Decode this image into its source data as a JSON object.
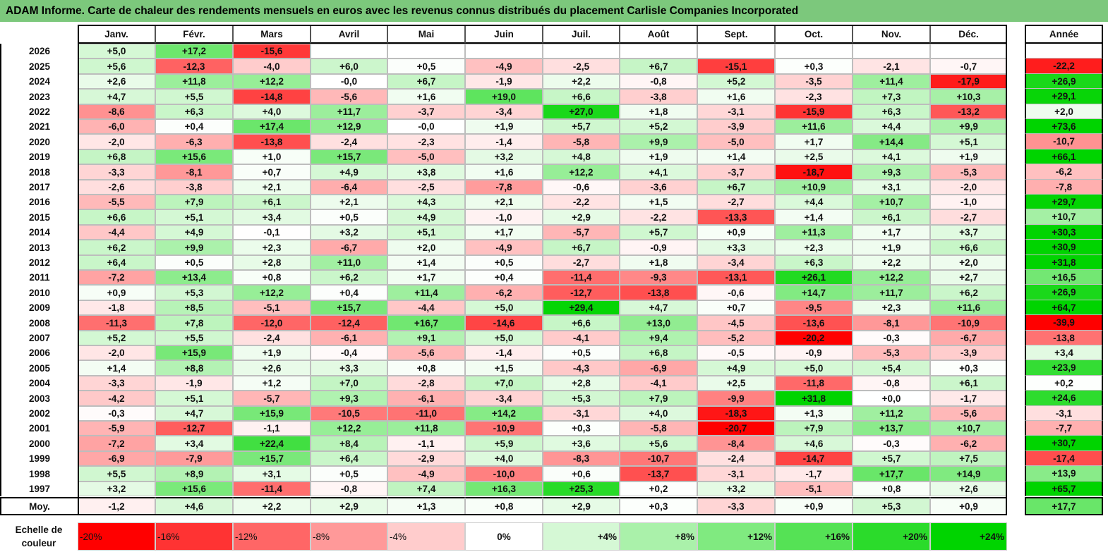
{
  "title": "ADAM Informe. Carte de chaleur des rendements mensuels en euros avec les revenus connus distribués du placement Carlisle Companies Incorporated",
  "months": [
    "Janv.",
    "Févr.",
    "Mars",
    "Avril",
    "Mai",
    "Juin",
    "Juil.",
    "Août",
    "Sept.",
    "Oct.",
    "Nov.",
    "Déc."
  ],
  "annual_header": "Année",
  "average_label": "Moy.",
  "scale_label": [
    "Echelle de",
    "couleur"
  ],
  "colors": {
    "negative": "#ff0000",
    "neutral": "#ffffff",
    "positive": "#00d400",
    "title_bg": "#7cc87c"
  },
  "chart_data": {
    "type": "heatmap",
    "title": "ADAM Informe. Carte de chaleur des rendements mensuels en euros avec les revenus connus distribués du placement Carlisle Companies Incorporated",
    "unit": "%",
    "rows": [
      {
        "year": "2026",
        "months": [
          "+5,0",
          "+17,2",
          "-15,6",
          "",
          "",
          "",
          "",
          "",
          "",
          "",
          "",
          ""
        ],
        "annual": ""
      },
      {
        "year": "2025",
        "months": [
          "+5,6",
          "-12,3",
          "-4,0",
          "+6,0",
          "+0,5",
          "-4,9",
          "-2,5",
          "+6,7",
          "-15,1",
          "+0,3",
          "-2,1",
          "-0,7"
        ],
        "annual": "-22,2"
      },
      {
        "year": "2024",
        "months": [
          "+2,6",
          "+11,8",
          "+12,2",
          "-0,0",
          "+6,7",
          "-1,9",
          "+2,2",
          "-0,8",
          "+5,2",
          "-3,5",
          "+11,4",
          "-17,9"
        ],
        "annual": "+26,9"
      },
      {
        "year": "2023",
        "months": [
          "+4,7",
          "+5,5",
          "-14,8",
          "-5,6",
          "+1,6",
          "+19,0",
          "+6,6",
          "-3,8",
          "+1,6",
          "-2,3",
          "+7,3",
          "+10,3"
        ],
        "annual": "+29,1"
      },
      {
        "year": "2022",
        "months": [
          "-8,6",
          "+6,3",
          "+4,0",
          "+11,7",
          "-3,7",
          "-3,4",
          "+27,0",
          "+1,8",
          "-3,1",
          "-15,9",
          "+6,3",
          "-13,2"
        ],
        "annual": "+2,0"
      },
      {
        "year": "2021",
        "months": [
          "-6,0",
          "+0,4",
          "+17,4",
          "+12,9",
          "-0,0",
          "+1,9",
          "+5,7",
          "+5,2",
          "-3,9",
          "+11,6",
          "+4,4",
          "+9,9"
        ],
        "annual": "+73,6"
      },
      {
        "year": "2020",
        "months": [
          "-2,0",
          "-6,3",
          "-13,8",
          "-2,4",
          "-2,3",
          "-1,4",
          "-5,8",
          "+9,9",
          "-5,0",
          "+1,7",
          "+14,4",
          "+5,1"
        ],
        "annual": "-10,7"
      },
      {
        "year": "2019",
        "months": [
          "+6,8",
          "+15,6",
          "+1,0",
          "+15,7",
          "-5,0",
          "+3,2",
          "+4,8",
          "+1,9",
          "+1,4",
          "+2,5",
          "+4,1",
          "+1,9"
        ],
        "annual": "+66,1"
      },
      {
        "year": "2018",
        "months": [
          "-3,3",
          "-8,1",
          "+0,7",
          "+4,9",
          "+3,8",
          "+1,6",
          "+12,2",
          "+4,1",
          "-3,7",
          "-18,7",
          "+9,3",
          "-5,3"
        ],
        "annual": "-6,2"
      },
      {
        "year": "2017",
        "months": [
          "-2,6",
          "-3,8",
          "+2,1",
          "-6,4",
          "-2,5",
          "-7,8",
          "-0,6",
          "-3,6",
          "+6,7",
          "+10,9",
          "+3,1",
          "-2,0"
        ],
        "annual": "-7,8"
      },
      {
        "year": "2016",
        "months": [
          "-5,5",
          "+7,9",
          "+6,1",
          "+2,1",
          "+4,3",
          "+2,1",
          "-2,2",
          "+1,5",
          "-2,7",
          "+4,4",
          "+10,7",
          "-1,0"
        ],
        "annual": "+29,7"
      },
      {
        "year": "2015",
        "months": [
          "+6,6",
          "+5,1",
          "+3,4",
          "+0,5",
          "+4,9",
          "-1,0",
          "+2,9",
          "-2,2",
          "-13,3",
          "+1,4",
          "+6,1",
          "-2,7"
        ],
        "annual": "+10,7"
      },
      {
        "year": "2014",
        "months": [
          "-4,4",
          "+4,9",
          "-0,1",
          "+3,2",
          "+5,1",
          "+1,7",
          "-5,7",
          "+5,7",
          "+0,9",
          "+11,3",
          "+1,7",
          "+3,7"
        ],
        "annual": "+30,3"
      },
      {
        "year": "2013",
        "months": [
          "+6,2",
          "+9,9",
          "+2,3",
          "-6,7",
          "+2,0",
          "-4,9",
          "+6,7",
          "-0,9",
          "+3,3",
          "+2,3",
          "+1,9",
          "+6,6"
        ],
        "annual": "+30,9"
      },
      {
        "year": "2012",
        "months": [
          "+6,4",
          "+0,5",
          "+2,8",
          "+11,0",
          "+1,4",
          "+0,5",
          "-2,7",
          "+1,8",
          "-3,4",
          "+6,3",
          "+2,2",
          "+2,0"
        ],
        "annual": "+31,8"
      },
      {
        "year": "2011",
        "months": [
          "-7,2",
          "+13,4",
          "+0,8",
          "+6,2",
          "+1,7",
          "+0,4",
          "-11,4",
          "-9,3",
          "-13,1",
          "+26,1",
          "+12,2",
          "+2,7"
        ],
        "annual": "+16,5"
      },
      {
        "year": "2010",
        "months": [
          "+0,9",
          "+5,3",
          "+12,2",
          "+0,4",
          "+11,4",
          "-6,2",
          "-12,7",
          "-13,8",
          "-0,6",
          "+14,7",
          "+11,7",
          "+6,2"
        ],
        "annual": "+26,9"
      },
      {
        "year": "2009",
        "months": [
          "-1,8",
          "+8,5",
          "-5,1",
          "+15,7",
          "-4,4",
          "+5,0",
          "+29,4",
          "+4,7",
          "+0,7",
          "-9,5",
          "+2,3",
          "+11,6"
        ],
        "annual": "+64,7"
      },
      {
        "year": "2008",
        "months": [
          "-11,3",
          "+7,8",
          "-12,0",
          "-12,4",
          "+16,7",
          "-14,6",
          "+6,6",
          "+13,0",
          "-4,5",
          "-13,6",
          "-8,1",
          "-10,9"
        ],
        "annual": "-39,9"
      },
      {
        "year": "2007",
        "months": [
          "+5,2",
          "+5,5",
          "-2,4",
          "-6,1",
          "+9,1",
          "+5,0",
          "-4,1",
          "+9,4",
          "-5,2",
          "-20,2",
          "-0,3",
          "-6,7"
        ],
        "annual": "-13,8"
      },
      {
        "year": "2006",
        "months": [
          "-2,0",
          "+15,9",
          "+1,9",
          "-0,4",
          "-5,6",
          "-1,4",
          "+0,5",
          "+6,8",
          "-0,5",
          "-0,9",
          "-5,3",
          "-3,9"
        ],
        "annual": "+3,4"
      },
      {
        "year": "2005",
        "months": [
          "+1,4",
          "+8,8",
          "+2,6",
          "+3,3",
          "+0,8",
          "+1,5",
          "-4,3",
          "-6,9",
          "+4,9",
          "+5,0",
          "+5,4",
          "+0,3"
        ],
        "annual": "+23,9"
      },
      {
        "year": "2004",
        "months": [
          "-3,3",
          "-1,9",
          "+1,2",
          "+7,0",
          "-2,8",
          "+7,0",
          "+2,8",
          "-4,1",
          "+2,5",
          "-11,8",
          "-0,8",
          "+6,1"
        ],
        "annual": "+0,2"
      },
      {
        "year": "2003",
        "months": [
          "-4,2",
          "+5,1",
          "-5,7",
          "+9,3",
          "-6,1",
          "-3,4",
          "+5,3",
          "+7,9",
          "-9,9",
          "+31,8",
          "+0,0",
          "-1,7"
        ],
        "annual": "+24,6"
      },
      {
        "year": "2002",
        "months": [
          "-0,3",
          "+4,7",
          "+15,9",
          "-10,5",
          "-11,0",
          "+14,2",
          "-3,1",
          "+4,0",
          "-18,3",
          "+1,3",
          "+11,2",
          "-5,6"
        ],
        "annual": "-3,1"
      },
      {
        "year": "2001",
        "months": [
          "-5,9",
          "-12,7",
          "-1,1",
          "+12,2",
          "+11,8",
          "-10,9",
          "+0,3",
          "-5,8",
          "-20,7",
          "+7,9",
          "+13,7",
          "+10,7"
        ],
        "annual": "-7,7"
      },
      {
        "year": "2000",
        "months": [
          "-7,2",
          "+3,4",
          "+22,4",
          "+8,4",
          "-1,1",
          "+5,9",
          "+3,6",
          "+5,6",
          "-8,4",
          "+4,6",
          "-0,3",
          "-6,2"
        ],
        "annual": "+30,7"
      },
      {
        "year": "1999",
        "months": [
          "-6,9",
          "-7,9",
          "+15,7",
          "+6,4",
          "-2,9",
          "+4,0",
          "-8,3",
          "-10,7",
          "-2,4",
          "-14,7",
          "+5,7",
          "+7,5"
        ],
        "annual": "-17,4"
      },
      {
        "year": "1998",
        "months": [
          "+5,5",
          "+8,9",
          "+3,1",
          "+0,5",
          "-4,9",
          "-10,0",
          "+0,6",
          "-13,7",
          "-3,1",
          "-1,7",
          "+17,7",
          "+14,9"
        ],
        "annual": "+13,9"
      },
      {
        "year": "1997",
        "months": [
          "+3,2",
          "+15,6",
          "-11,4",
          "-0,8",
          "+7,4",
          "+16,3",
          "+25,3",
          "+0,2",
          "+3,2",
          "-5,1",
          "+0,8",
          "+2,6"
        ],
        "annual": "+65,7"
      }
    ],
    "average": {
      "months": [
        "-1,2",
        "+4,6",
        "+2,2",
        "+2,9",
        "+1,3",
        "+0,8",
        "+2,9",
        "+0,3",
        "-3,3",
        "+0,9",
        "+5,3",
        "+0,9"
      ],
      "annual": "+17,7"
    },
    "color_scale": [
      "-20%",
      "-16%",
      "-12%",
      "-8%",
      "-4%",
      "0%",
      "+4%",
      "+8%",
      "+12%",
      "+16%",
      "+20%",
      "+24%"
    ]
  }
}
